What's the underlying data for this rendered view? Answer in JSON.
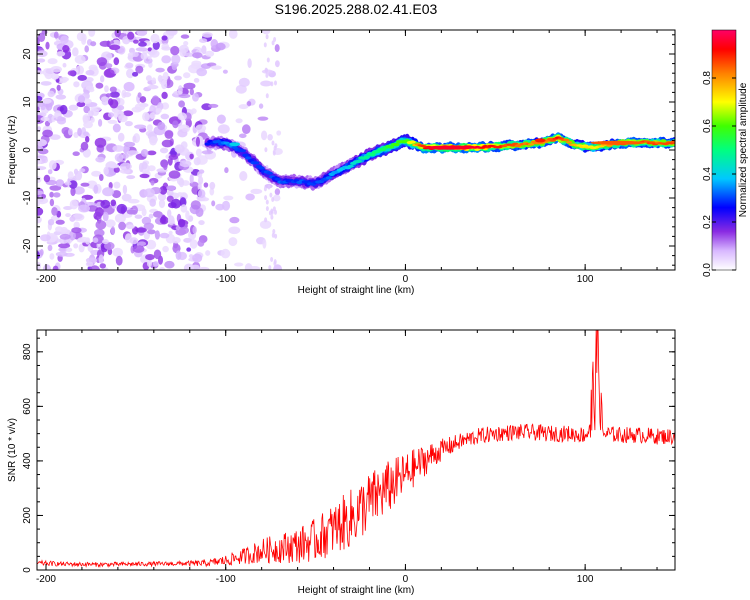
{
  "title": "S196.2025.288.02.41.E03",
  "chart_data": [
    {
      "type": "heatmap",
      "title": "S196.2025.288.02.41.E03",
      "xlabel": "Height of straight line (km)",
      "ylabel": "Frequency (Hz)",
      "xlim": [
        -205,
        150
      ],
      "ylim": [
        -25,
        25
      ],
      "xticks": [
        -200,
        -100,
        0,
        100
      ],
      "yticks": [
        -20,
        -10,
        0,
        10,
        20
      ],
      "colorbar": {
        "label": "Normalized spectral amplitude",
        "range": [
          0,
          1
        ],
        "ticks": [
          0.0,
          0.2,
          0.4,
          0.6,
          0.8
        ]
      },
      "ridge": {
        "height_km": [
          -110,
          -100,
          -90,
          -80,
          -70,
          -60,
          -50,
          -40,
          -30,
          -20,
          -10,
          0,
          10,
          40,
          60,
          75,
          85,
          95,
          105,
          120,
          150
        ],
        "frequency_hz": [
          1.5,
          1.5,
          -0.5,
          -4,
          -6.5,
          -6.5,
          -7,
          -5,
          -3,
          -1,
          0.5,
          2,
          0.5,
          0.5,
          1,
          1.5,
          2.5,
          1,
          0.5,
          1.5,
          1.5
        ],
        "amplitude": [
          0.25,
          0.35,
          0.3,
          0.3,
          0.3,
          0.3,
          0.3,
          0.35,
          0.4,
          0.5,
          0.55,
          0.6,
          0.9,
          0.95,
          0.85,
          0.8,
          0.9,
          0.75,
          0.7,
          0.85,
          0.85
        ]
      }
    },
    {
      "type": "line",
      "xlabel": "Height of straight line (km)",
      "ylabel": "SNR (10 * v/v)",
      "xlim": [
        -205,
        150
      ],
      "ylim": [
        0,
        880
      ],
      "xticks": [
        -200,
        -100,
        0,
        100
      ],
      "yticks": [
        0,
        200,
        400,
        600,
        800
      ],
      "series": [
        {
          "name": "SNR",
          "color": "#ff0000",
          "x": [
            -205,
            -190,
            -170,
            -150,
            -130,
            -110,
            -100,
            -90,
            -80,
            -70,
            -60,
            -50,
            -40,
            -30,
            -20,
            -10,
            0,
            10,
            20,
            30,
            40,
            50,
            60,
            70,
            80,
            90,
            100,
            103,
            105,
            107,
            109,
            110,
            120,
            130,
            140,
            150
          ],
          "mean": [
            25,
            22,
            20,
            22,
            23,
            25,
            35,
            50,
            70,
            80,
            90,
            110,
            150,
            190,
            250,
            300,
            350,
            400,
            440,
            470,
            490,
            500,
            505,
            505,
            500,
            500,
            495,
            540,
            650,
            840,
            540,
            500,
            495,
            495,
            490,
            490
          ],
          "noise": [
            10,
            8,
            8,
            8,
            8,
            12,
            20,
            30,
            45,
            55,
            65,
            80,
            95,
            110,
            110,
            100,
            80,
            60,
            40,
            30,
            30,
            30,
            30,
            30,
            30,
            30,
            30,
            150,
            200,
            120,
            120,
            30,
            30,
            30,
            30,
            30
          ]
        }
      ]
    }
  ],
  "colors": {
    "line": "#ff0000",
    "axis": "#000000",
    "colormap": [
      "#f0e6ff",
      "#c8a8f8",
      "#7a1cf0",
      "#0000ff",
      "#00d8ff",
      "#00ff66",
      "#ffff00",
      "#ff8c00",
      "#ff0000",
      "#ff00a0"
    ]
  }
}
